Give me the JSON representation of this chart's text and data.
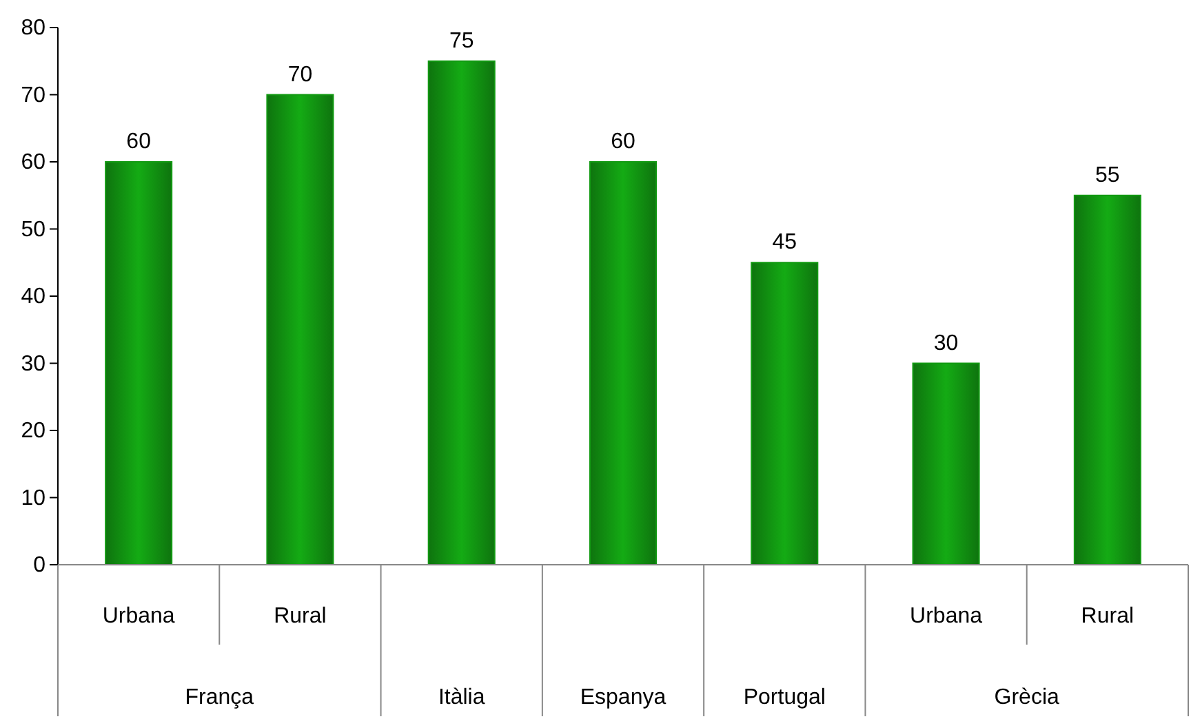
{
  "chart_data": {
    "type": "bar",
    "categories": [
      "Urbana",
      "Rural",
      null,
      null,
      null,
      "Urbana",
      "Rural"
    ],
    "values": [
      60,
      70,
      75,
      60,
      45,
      30,
      55
    ],
    "color": "#129a12",
    "ylim": [
      0,
      80
    ],
    "yticks": [
      0,
      10,
      20,
      30,
      40,
      50,
      60,
      70,
      80
    ],
    "grid": false,
    "data_labels": true,
    "annotations": [
      "França",
      "Itàlia",
      "Espanya",
      "Portugal",
      "Grècia"
    ]
  }
}
